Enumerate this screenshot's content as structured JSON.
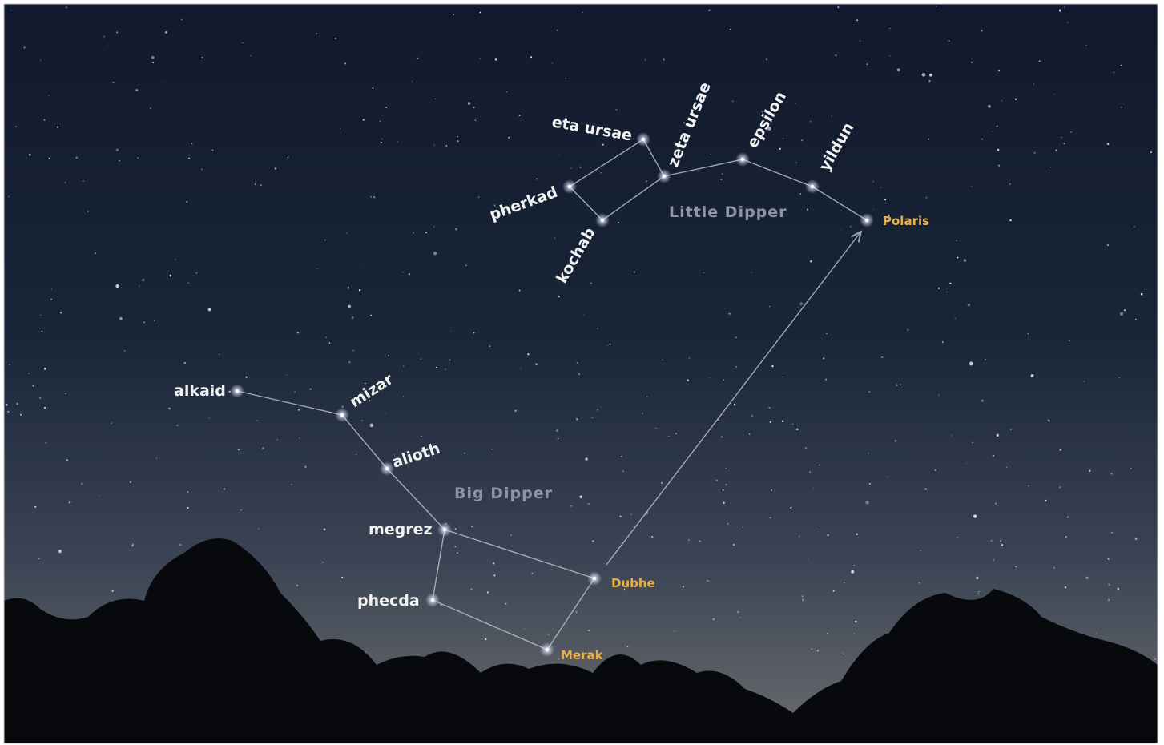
{
  "stars": [
    {
      "label": "eta ursae"
    },
    {
      "label": "zeta ursae"
    },
    {
      "label": "epsilon"
    },
    {
      "label": "yildun"
    },
    {
      "label": "pherkad"
    },
    {
      "label": "kochab"
    },
    {
      "label": "Polaris"
    },
    {
      "label": "alkaid"
    },
    {
      "label": "mizar"
    },
    {
      "label": "alioth"
    },
    {
      "label": "megrez"
    },
    {
      "label": "phecda"
    },
    {
      "label": "Dubhe"
    },
    {
      "label": "Merak"
    }
  ],
  "constellations": [
    {
      "label": "Little Dipper"
    },
    {
      "label": "Big Dipper"
    }
  ]
}
